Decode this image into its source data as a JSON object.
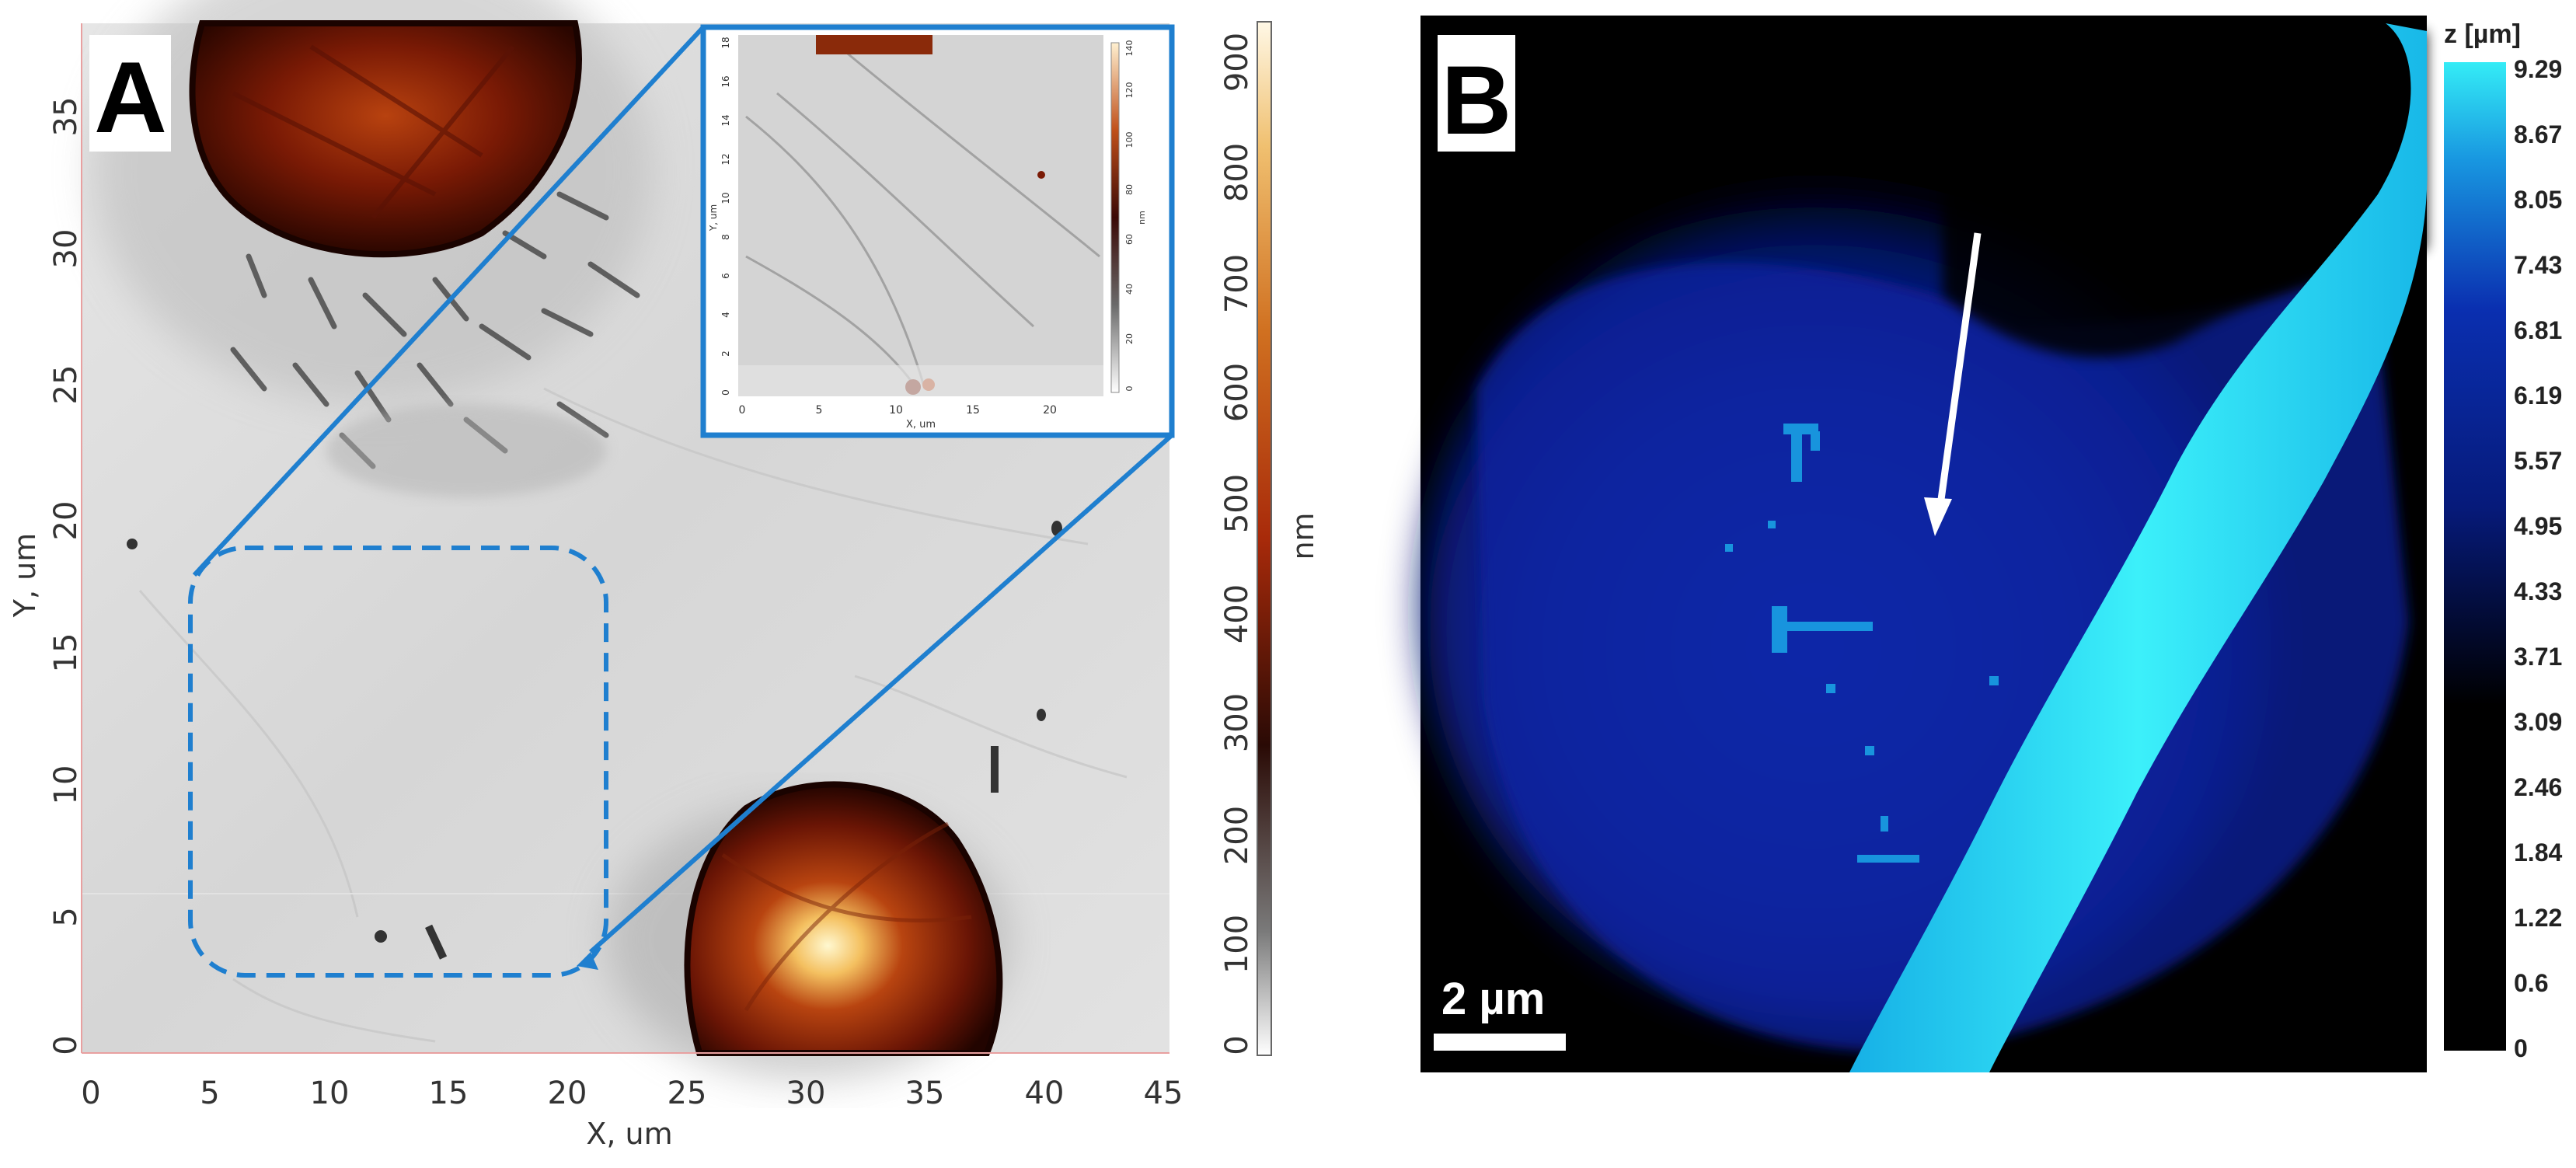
{
  "panel_a": {
    "letter": "A",
    "x_axis_label": "X, um",
    "y_axis_label": "Y, um",
    "x_ticks": [
      "0",
      "5",
      "10",
      "15",
      "20",
      "25",
      "30",
      "35",
      "40",
      "45"
    ],
    "y_ticks": [
      "0",
      "5",
      "10",
      "15",
      "20",
      "25",
      "30",
      "35"
    ],
    "colorbar_label": "nm",
    "colorbar_ticks": [
      "0",
      "100",
      "200",
      "300",
      "400",
      "500",
      "600",
      "700",
      "800",
      "900"
    ],
    "inset": {
      "x_axis_label": "X, um",
      "y_axis_label": "Y, um",
      "x_ticks": [
        "0",
        "5",
        "10",
        "15",
        "20"
      ],
      "y_ticks": [
        "0",
        "2",
        "4",
        "6",
        "8",
        "10",
        "12",
        "14",
        "16",
        "18"
      ],
      "colorbar_label": "nm",
      "colorbar_ticks": [
        "0",
        "20",
        "40",
        "60",
        "80",
        "100",
        "120",
        "140"
      ]
    },
    "colors": {
      "highlight": "#1f7fcf",
      "background_gray": "#d9d9d9",
      "cell_dark": "#3a0a00",
      "cell_mid": "#a0330a",
      "cell_bright": "#ffe6a0"
    }
  },
  "panel_b": {
    "letter": "B",
    "colorbar_title": "z [µm]",
    "colorbar_ticks": [
      "9.29",
      "8.67",
      "8.05",
      "7.43",
      "6.81",
      "6.19",
      "5.57",
      "4.95",
      "4.33",
      "3.71",
      "3.09",
      "2.46",
      "1.84",
      "1.22",
      "0.6",
      "0"
    ],
    "scale_bar_label": "2 µm",
    "colors": {
      "cyan": "#22d6f0",
      "navy": "#0a1e8c",
      "black": "#000000"
    }
  }
}
